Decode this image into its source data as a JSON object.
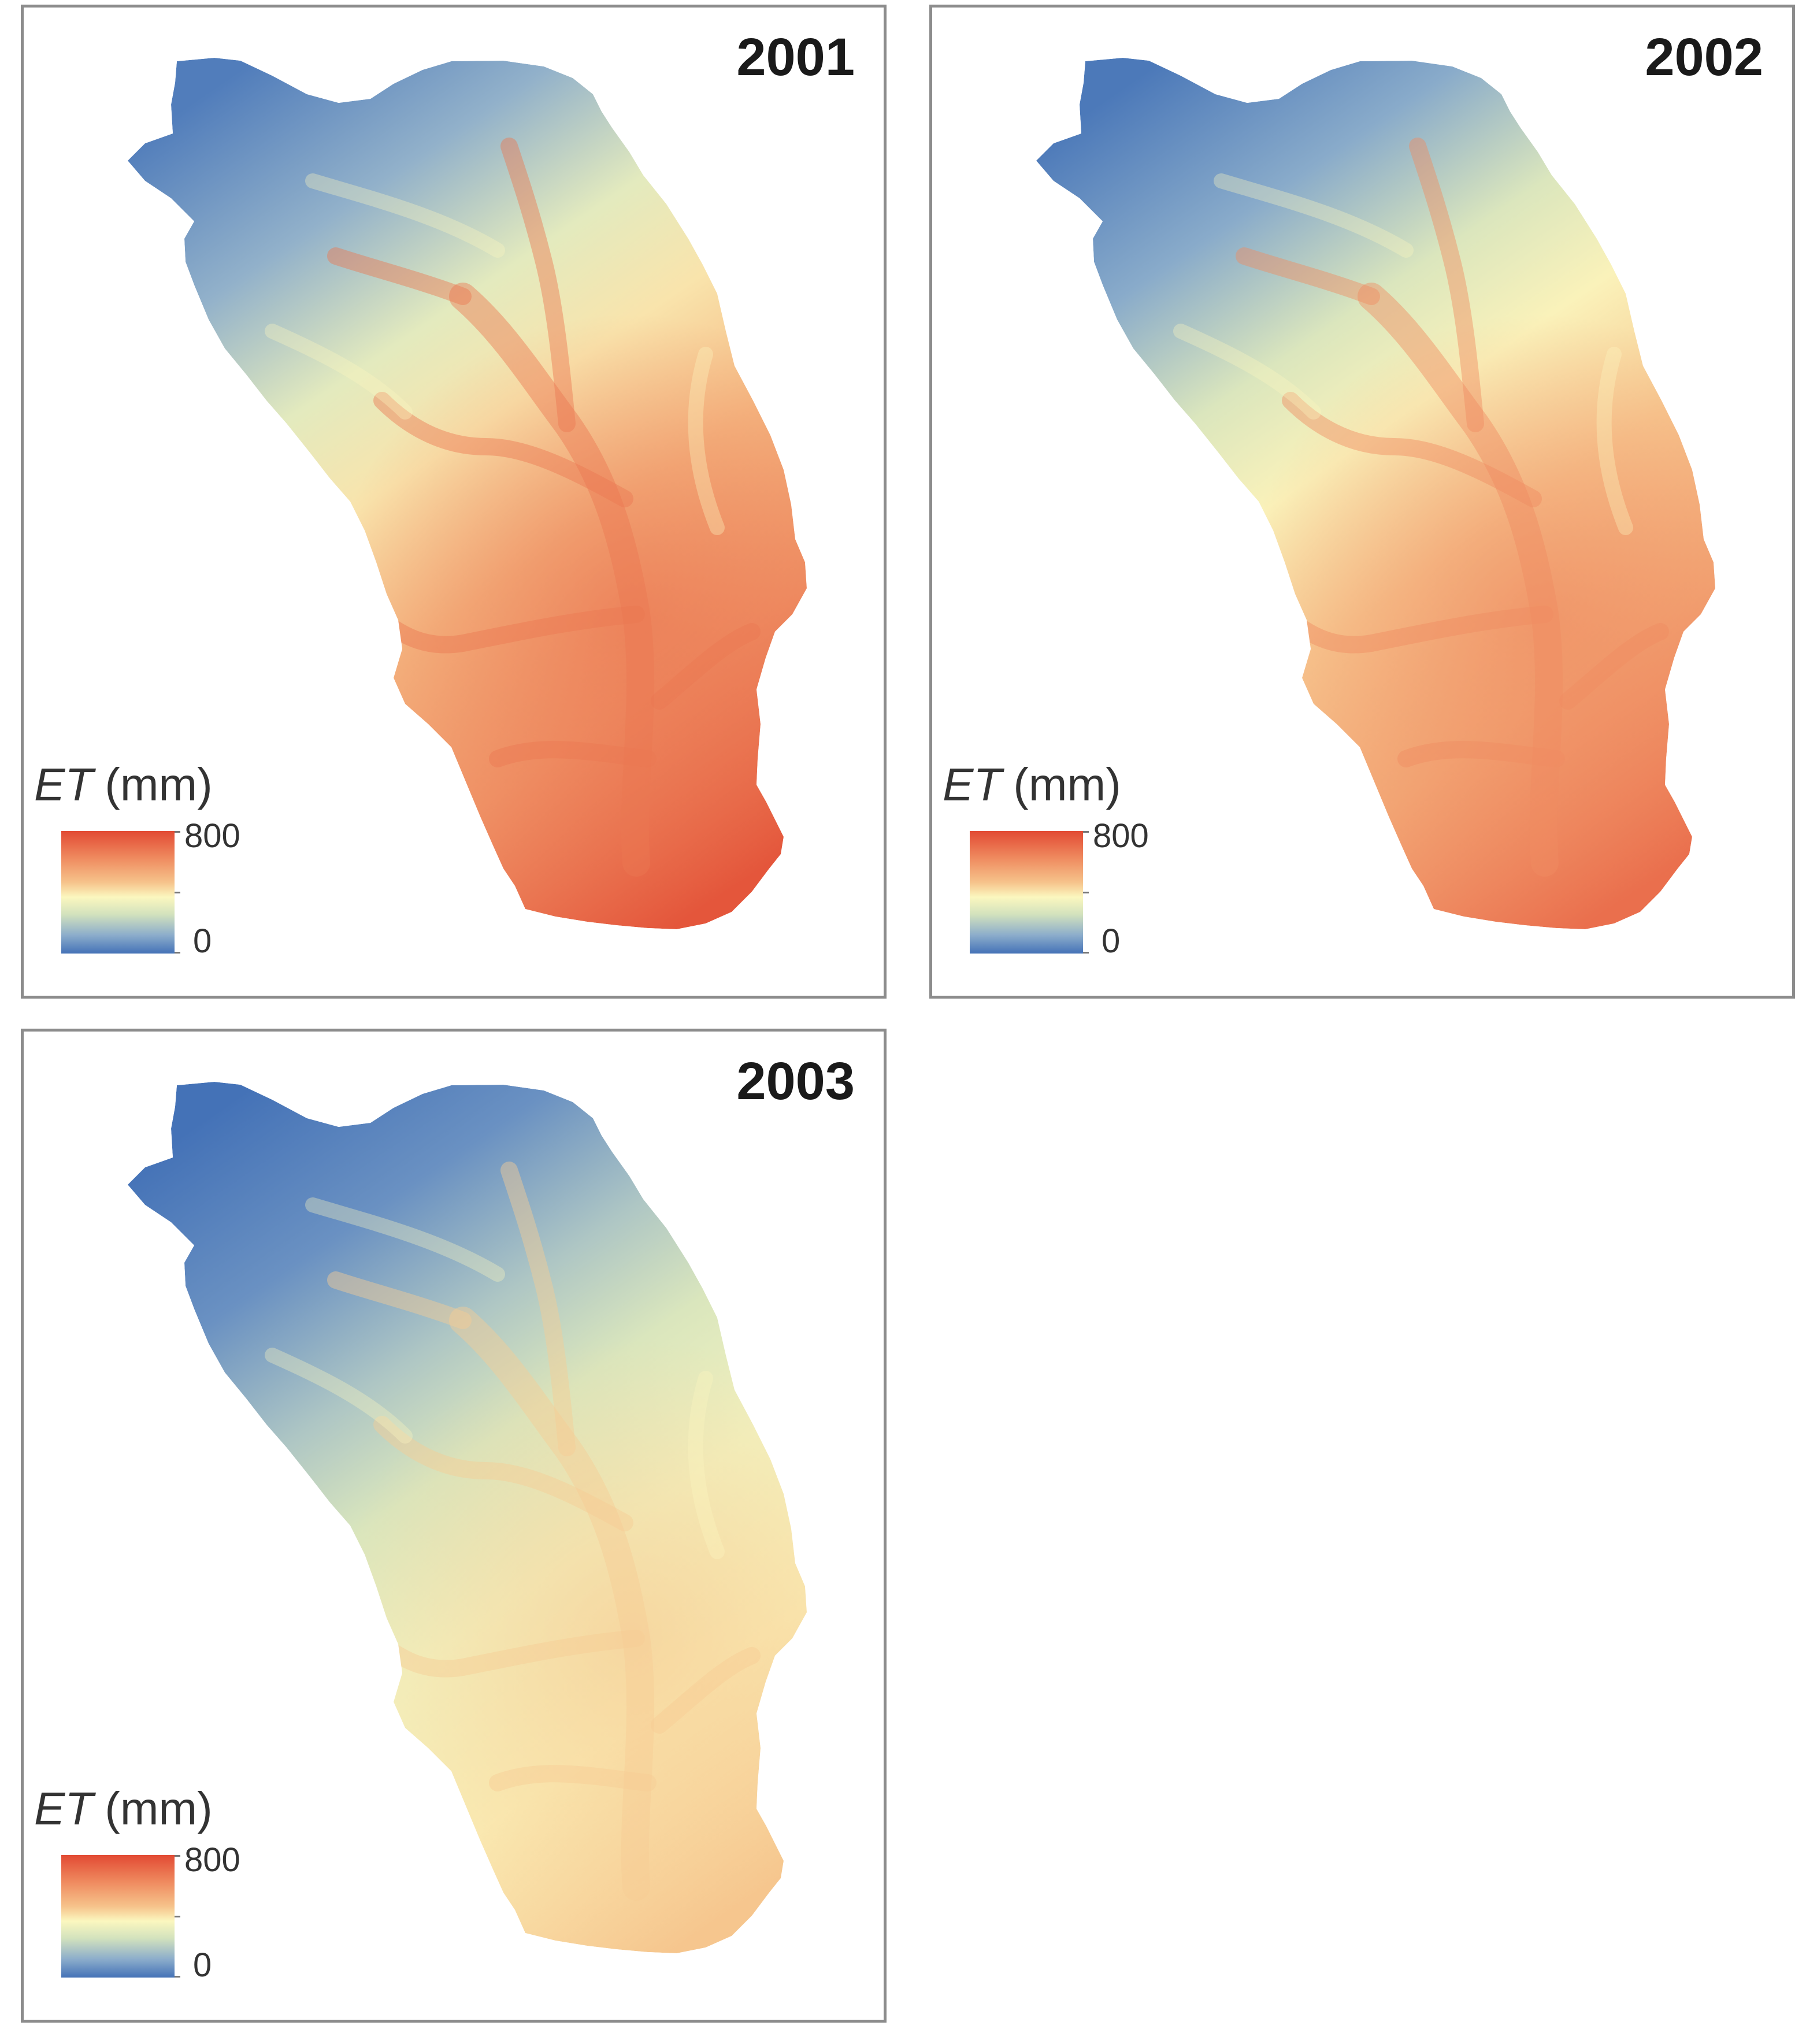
{
  "figure": {
    "panels": [
      {
        "year": "2001",
        "legend": {
          "variable": "ET",
          "unit": "(mm)",
          "max_label": "800",
          "min_label": "0"
        },
        "intensity": 1.0
      },
      {
        "year": "2002",
        "legend": {
          "variable": "ET",
          "unit": "(mm)",
          "max_label": "800",
          "min_label": "0"
        },
        "intensity": 0.94
      },
      {
        "year": "2003",
        "legend": {
          "variable": "ET",
          "unit": "(mm)",
          "max_label": "800",
          "min_label": "0"
        },
        "intensity": 0.72
      }
    ],
    "colormap": [
      "#4472b7",
      "#8cadcb",
      "#d3e2bd",
      "#fbf7bf",
      "#f6c38b",
      "#ef8a5f",
      "#e24a33"
    ],
    "value_range": [
      0,
      800
    ]
  }
}
